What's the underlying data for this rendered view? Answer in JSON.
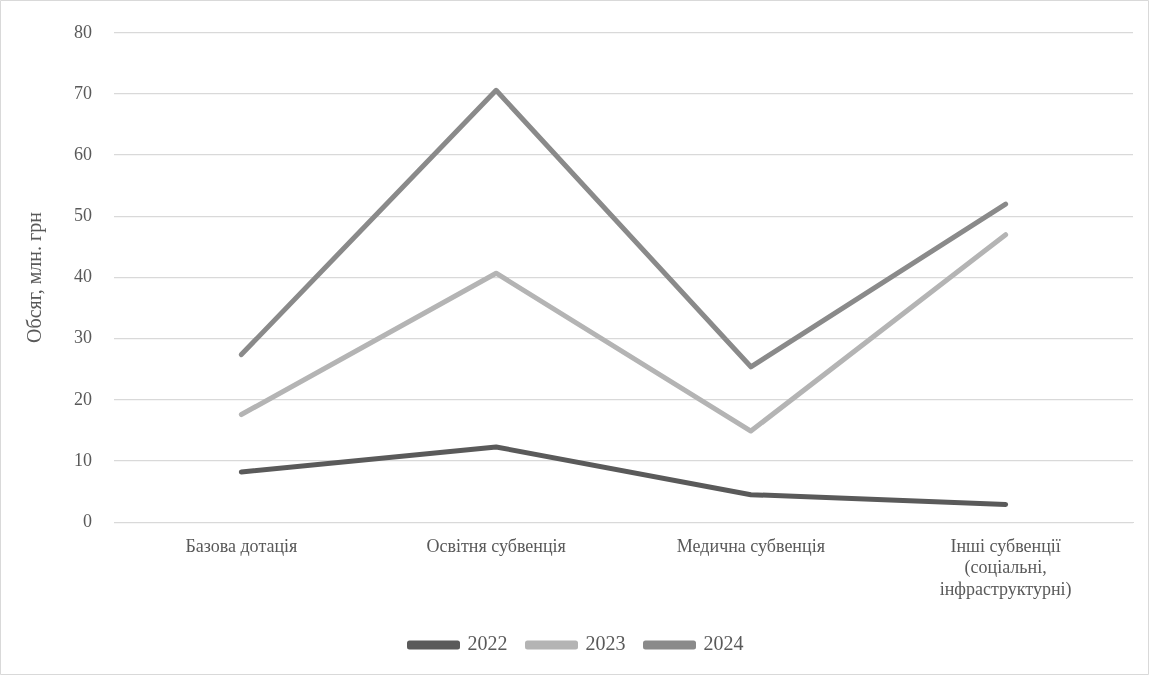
{
  "chart_data": {
    "type": "line",
    "ylabel": "Обсяг, млн. грн",
    "categories": [
      "Базова дотація",
      "Освітня субвенція",
      "Медична субвенція",
      "Інші субвенції (соціальні, інфраструктурні)"
    ],
    "series": [
      {
        "name": "2022",
        "color": "#5a5a5a",
        "values": [
          8.2,
          12.3,
          4.5,
          2.9
        ]
      },
      {
        "name": "2023",
        "color": "#b4b4b4",
        "values": [
          17.6,
          40.7,
          14.9,
          47.0
        ]
      },
      {
        "name": "2024",
        "color": "#8a8a8a",
        "values": [
          27.4,
          70.6,
          25.4,
          52.0
        ]
      }
    ],
    "ylim": [
      0,
      80
    ],
    "yticks": [
      0,
      10,
      20,
      30,
      40,
      50,
      60,
      70,
      80
    ],
    "grid": "y",
    "legend": "bottom",
    "marker": "none",
    "line_style": "solid"
  }
}
